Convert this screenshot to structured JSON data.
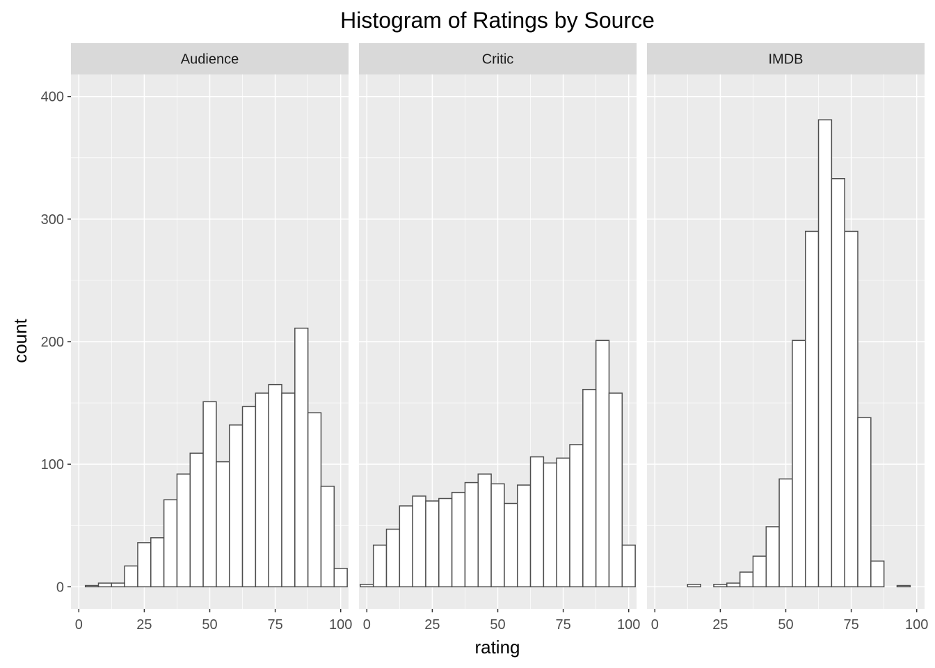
{
  "chart_data": {
    "type": "histogram",
    "title": "Histogram of Ratings by Source",
    "xlabel": "rating",
    "ylabel": "count",
    "bin_width": 5,
    "bin_centers": [
      0,
      5,
      10,
      15,
      20,
      25,
      30,
      35,
      40,
      45,
      50,
      55,
      60,
      65,
      70,
      75,
      80,
      85,
      90,
      95,
      100
    ],
    "xlim": [
      -3,
      103
    ],
    "ylim": [
      -18,
      418
    ],
    "x_ticks": [
      0,
      25,
      50,
      75,
      100
    ],
    "y_ticks": [
      0,
      100,
      200,
      300,
      400
    ],
    "grid": true,
    "facets": [
      {
        "name": "Audience",
        "values": [
          0,
          1,
          3,
          3,
          17,
          36,
          40,
          71,
          92,
          109,
          151,
          102,
          132,
          147,
          158,
          165,
          158,
          211,
          142,
          82,
          15
        ]
      },
      {
        "name": "Critic",
        "values": [
          2,
          34,
          47,
          66,
          74,
          70,
          72,
          77,
          85,
          92,
          84,
          68,
          83,
          106,
          101,
          105,
          116,
          161,
          201,
          158,
          34
        ]
      },
      {
        "name": "IMDB",
        "values": [
          0,
          0,
          0,
          2,
          0,
          2,
          3,
          12,
          25,
          49,
          88,
          201,
          290,
          381,
          333,
          290,
          138,
          21,
          0,
          1,
          0
        ]
      }
    ],
    "colors": {
      "panel": "#ebebeb",
      "strip": "#d9d9d9",
      "grid": "#ffffff",
      "bar_fill": "#ffffff",
      "bar_stroke": "#4d4d4d"
    }
  }
}
